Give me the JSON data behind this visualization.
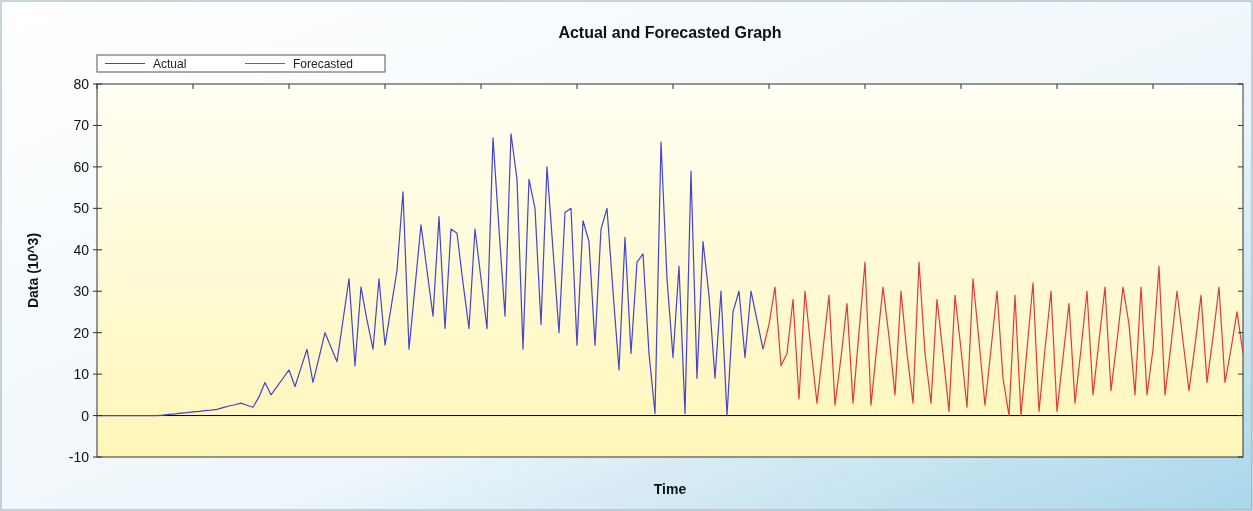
{
  "chart_data": {
    "type": "line",
    "title": "Actual and Forecasted Graph",
    "xlabel": "Time",
    "ylabel": "Data (10^3)",
    "ylim": [
      -10,
      80
    ],
    "yticks": [
      -10,
      0,
      10,
      20,
      30,
      40,
      50,
      60,
      70,
      80
    ],
    "tick_labels": "y",
    "legend": "top left",
    "ref_lines": [
      {
        "axis": "y",
        "value": 0,
        "color": "#000000"
      }
    ],
    "categories": [
      null,
      null,
      null,
      null,
      null,
      null,
      null,
      null,
      null,
      null,
      null,
      null,
      null,
      null,
      null,
      null,
      null,
      null,
      null,
      null,
      null,
      null,
      null,
      null,
      null,
      null,
      null,
      null,
      null,
      null,
      null,
      null,
      null,
      null,
      null,
      null,
      null,
      null,
      null,
      null,
      null,
      null,
      null,
      null,
      null,
      null,
      null,
      null,
      null,
      null,
      null,
      null,
      null,
      null,
      null,
      null,
      null,
      null,
      null,
      null,
      null,
      null,
      null,
      null,
      null,
      null,
      null,
      null,
      null,
      null,
      null,
      null,
      null,
      null,
      null,
      null,
      null,
      null,
      null,
      null,
      null,
      null,
      null,
      null,
      null,
      null,
      null,
      null,
      null,
      null,
      null,
      null,
      null,
      null,
      null,
      null,
      null,
      null,
      null,
      null,
      null,
      null,
      null,
      null,
      null,
      null,
      null,
      null,
      null,
      null,
      null,
      null,
      null,
      null,
      null,
      null,
      null,
      null,
      null,
      null,
      null,
      null,
      null,
      null,
      null,
      null,
      null,
      null,
      null,
      null,
      null,
      null,
      null,
      null,
      null,
      null,
      null,
      null,
      null,
      null,
      null,
      null,
      null,
      null,
      null,
      null,
      null,
      null,
      null,
      null,
      null,
      null,
      null,
      null,
      null,
      null,
      null,
      null,
      null,
      null,
      null,
      null,
      null,
      null,
      null,
      null,
      null,
      null,
      null,
      null,
      null,
      null,
      null,
      null,
      null,
      null,
      null,
      null,
      null,
      null,
      null,
      null,
      null,
      null,
      null,
      null,
      null,
      null,
      null,
      null,
      null,
      null
    ],
    "series": [
      {
        "name": "Actual",
        "color": "#4444cc",
        "values": [
          0,
          0,
          0,
          0,
          0,
          0,
          0,
          0,
          0,
          0,
          0,
          0.1,
          0.3,
          0.4,
          0.6,
          0.7,
          0.9,
          1,
          1.2,
          1.3,
          1.5,
          1.9,
          2.3,
          2.6,
          3,
          2.5,
          2,
          4.5,
          8,
          5,
          7,
          9,
          11,
          7,
          11.5,
          16,
          8,
          14,
          20,
          16.5,
          13,
          23,
          33,
          12,
          31,
          23,
          16,
          33,
          17,
          26,
          35,
          54,
          16,
          31,
          46,
          35,
          24,
          48,
          21,
          45,
          44,
          32,
          21,
          45,
          33,
          21,
          67,
          45,
          24,
          68,
          57,
          16,
          57,
          50,
          22,
          60,
          40,
          20,
          49,
          50,
          17,
          47,
          42,
          17,
          45,
          50,
          30,
          11,
          43,
          15,
          37,
          39,
          15,
          0.5,
          66,
          33,
          14,
          36,
          0.5,
          59,
          9,
          42,
          29,
          9,
          30,
          0,
          25,
          30,
          14,
          30,
          23,
          16,
          null,
          null,
          null,
          null,
          null,
          null,
          null,
          null,
          null,
          null,
          null,
          null,
          null,
          null,
          null,
          null,
          null,
          null,
          null,
          null,
          null,
          null,
          null,
          null,
          null,
          null,
          null,
          null,
          null,
          null,
          null,
          null,
          null,
          null,
          null,
          null,
          null,
          null,
          null,
          null,
          null,
          null,
          null,
          null,
          null,
          null,
          null,
          null,
          null,
          null,
          null,
          null,
          null,
          null,
          null,
          null,
          null,
          null,
          null,
          null,
          null,
          null,
          null,
          null,
          null,
          null,
          null,
          null,
          null,
          null,
          null,
          null,
          null,
          null,
          null,
          null,
          null,
          null,
          null,
          null
        ]
      },
      {
        "name": "Forecasted",
        "color": "#e03a3a",
        "values": [
          null,
          null,
          null,
          null,
          null,
          null,
          null,
          null,
          null,
          null,
          null,
          null,
          null,
          null,
          null,
          null,
          null,
          null,
          null,
          null,
          null,
          null,
          null,
          null,
          null,
          null,
          null,
          null,
          null,
          null,
          null,
          null,
          null,
          null,
          null,
          null,
          null,
          null,
          null,
          null,
          null,
          null,
          null,
          null,
          null,
          null,
          null,
          null,
          null,
          null,
          null,
          null,
          null,
          null,
          null,
          null,
          null,
          null,
          null,
          null,
          null,
          null,
          null,
          null,
          null,
          null,
          null,
          null,
          null,
          null,
          null,
          null,
          null,
          null,
          null,
          null,
          null,
          null,
          null,
          null,
          null,
          null,
          null,
          null,
          null,
          null,
          null,
          null,
          null,
          null,
          null,
          null,
          null,
          null,
          null,
          null,
          null,
          null,
          null,
          null,
          null,
          null,
          null,
          null,
          null,
          null,
          null,
          null,
          null,
          null,
          null,
          16,
          22,
          31,
          12,
          15,
          28,
          4,
          30,
          16,
          3,
          16,
          29,
          2.5,
          14,
          27,
          3,
          20,
          37,
          2.5,
          17,
          31,
          19,
          5,
          30,
          15,
          3,
          37,
          15,
          3,
          28,
          15,
          1,
          29,
          16,
          2,
          33,
          18,
          2.5,
          16,
          30,
          9,
          0,
          29,
          0,
          16,
          32,
          1,
          16,
          30,
          1,
          14,
          27,
          3,
          16,
          30,
          5,
          18,
          31,
          6,
          18,
          31,
          22,
          5,
          31,
          5,
          16,
          36,
          5,
          17,
          30,
          18,
          6,
          17,
          29,
          8,
          19,
          31,
          8,
          16,
          25,
          15
        ]
      }
    ]
  }
}
